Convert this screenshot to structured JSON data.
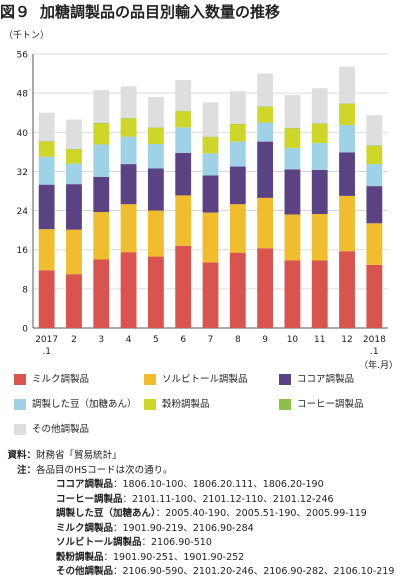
{
  "title_prefix": "図９",
  "title_text": "加糖調製品の品目別輸入数量の推移",
  "chart_data": {
    "type": "bar",
    "stacked": true,
    "yunit": "（千トン）",
    "xunit": "（年.月）",
    "ylim": [
      0,
      56
    ],
    "yticks": [
      0,
      8,
      16,
      24,
      32,
      40,
      48,
      56
    ],
    "grid": true,
    "categories": [
      "2017\n.1",
      "2",
      "3",
      "4",
      "5",
      "6",
      "7",
      "8",
      "9",
      "10",
      "11",
      "12",
      "2018\n.1"
    ],
    "series": [
      {
        "name": "ミルク調製品",
        "color": "#d9534f",
        "values": [
          11.8,
          11.0,
          14.0,
          15.5,
          14.6,
          16.8,
          13.4,
          15.4,
          16.3,
          13.8,
          13.8,
          15.7,
          12.9
        ]
      },
      {
        "name": "ソルビトール調製品",
        "color": "#f0bd2e",
        "values": [
          8.4,
          9.1,
          9.7,
          9.8,
          9.4,
          10.3,
          10.2,
          9.9,
          10.3,
          9.4,
          9.5,
          11.3,
          8.5
        ]
      },
      {
        "name": "ココア調製品",
        "color": "#5b4283",
        "values": [
          9.1,
          9.3,
          7.2,
          8.2,
          8.6,
          8.7,
          7.6,
          7.7,
          11.5,
          9.2,
          9.0,
          8.9,
          7.6
        ]
      },
      {
        "name": "調製した豆（加糖あん）",
        "color": "#9fd2e6",
        "values": [
          5.7,
          4.2,
          6.6,
          5.6,
          5.0,
          5.2,
          4.5,
          5.1,
          3.9,
          4.4,
          5.5,
          5.6,
          4.5
        ]
      },
      {
        "name": "穀粉調製品",
        "color": "#cfd62a",
        "values": [
          3.1,
          2.9,
          4.3,
          3.7,
          3.3,
          3.3,
          3.3,
          3.5,
          3.2,
          4.0,
          3.9,
          4.3,
          3.7
        ]
      },
      {
        "name": "コーヒー調製品",
        "color": "#8cc04a",
        "values": [
          0.1,
          0.1,
          0.1,
          0.1,
          0.1,
          0.1,
          0.1,
          0.1,
          0.1,
          0.1,
          0.1,
          0.1,
          0.1
        ]
      },
      {
        "name": "その他調製品",
        "color": "#dedede",
        "values": [
          5.8,
          6.0,
          6.7,
          6.5,
          6.2,
          6.3,
          7.0,
          6.7,
          6.7,
          6.7,
          7.2,
          7.5,
          6.2
        ]
      }
    ]
  },
  "legend_order": [
    0,
    1,
    2,
    3,
    4,
    5,
    6
  ],
  "notes": {
    "source_head": "資料：",
    "source_text": "財務省「貿易統計」",
    "note_head": "注：",
    "note_text": "各品目のHSコードは次の通り。",
    "codes": [
      {
        "name": "ココア調製品",
        "value": "：1806.10-100、1806.20.111、1806.20-190"
      },
      {
        "name": "コーヒー調製品",
        "value": "：2101.11-100、2101.12-110、2101.12-246"
      },
      {
        "name": "調製した豆（加糖あん）",
        "value": "：2005.40-190、2005.51-190、2005.99-119"
      },
      {
        "name": "ミルク調製品",
        "value": "：1901.90-219、2106.90-284"
      },
      {
        "name": "ソルビトール調製品",
        "value": "：2106.90-510"
      },
      {
        "name": "穀粉調製品",
        "value": "：1901.90-251、1901.90-252"
      },
      {
        "name": "その他調製品",
        "value": "：2106.90-590、2101.20-246、2106.90-282、2106.10-219"
      }
    ]
  }
}
